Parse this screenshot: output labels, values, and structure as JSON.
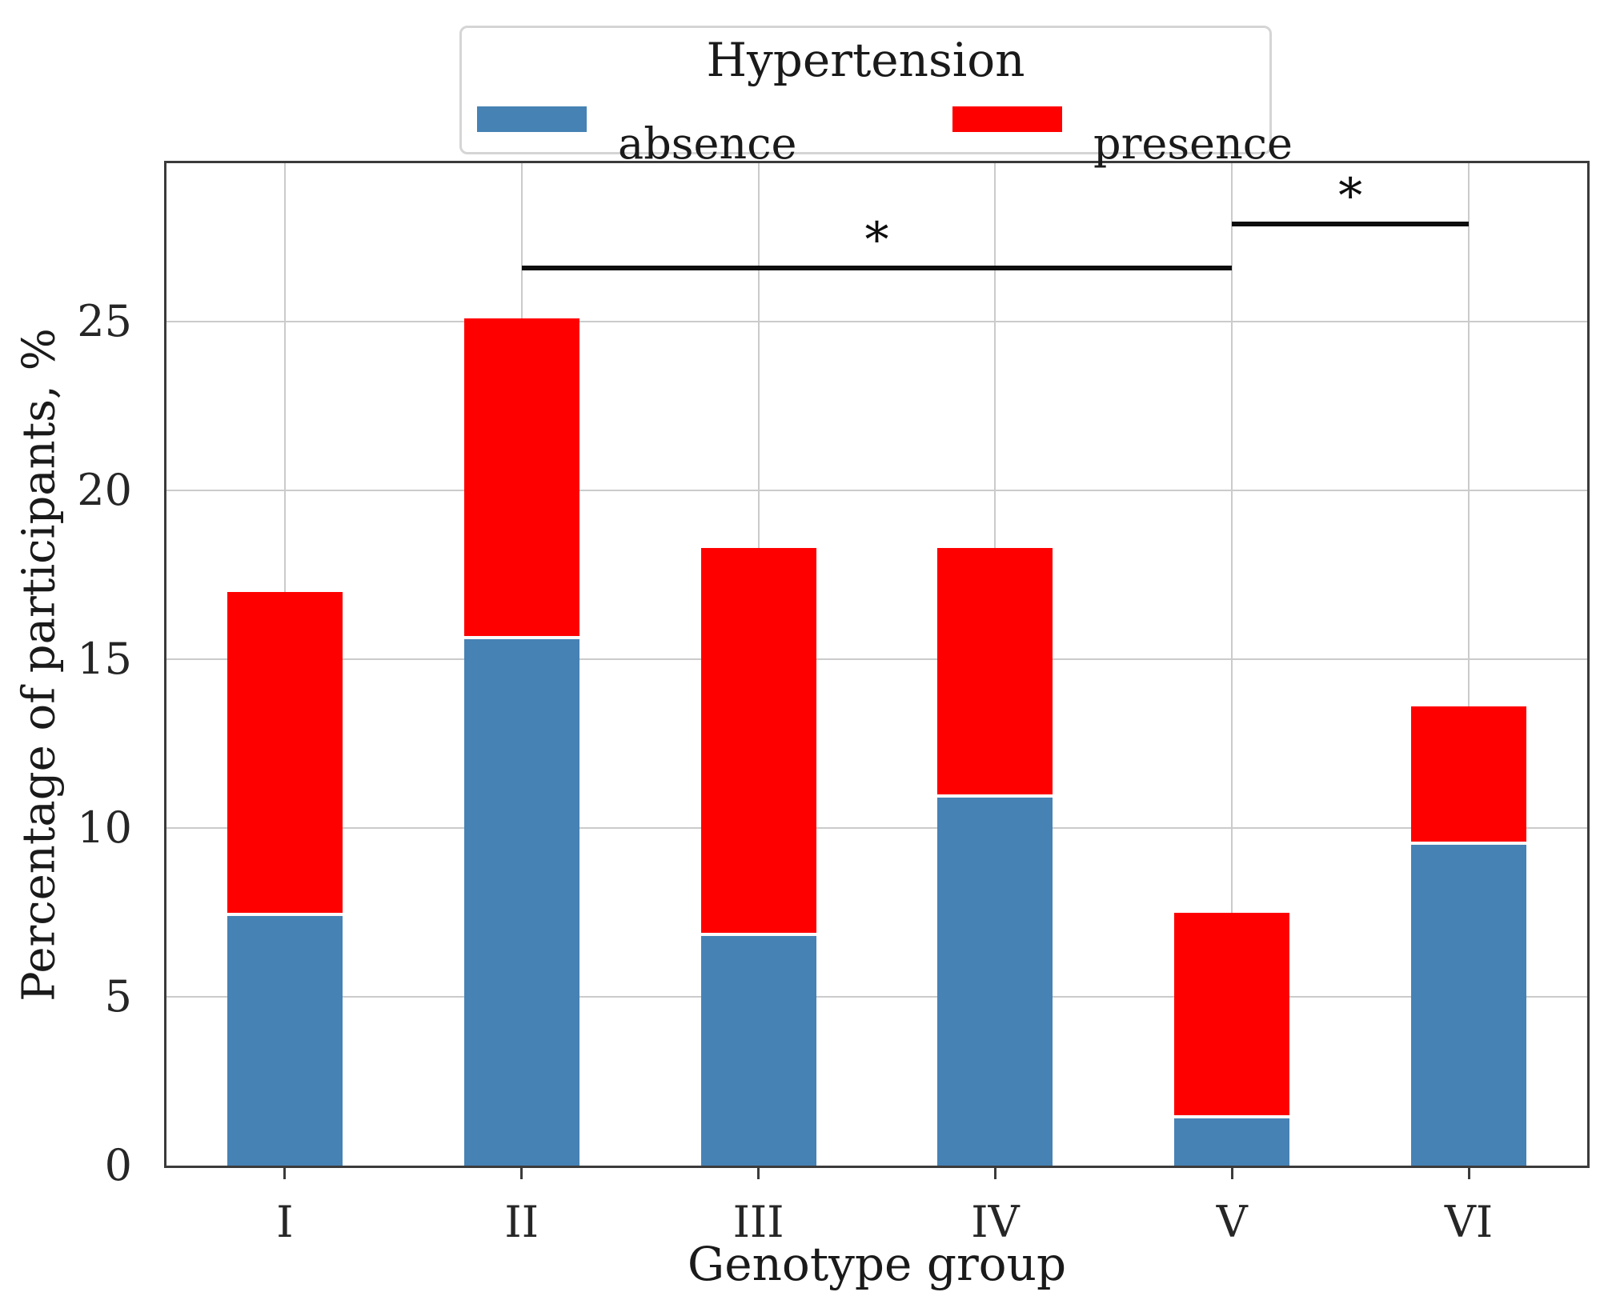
{
  "chart_data": {
    "type": "bar",
    "stacked": true,
    "categories": [
      "I",
      "II",
      "III",
      "IV",
      "V",
      "VI"
    ],
    "series": [
      {
        "name": "absence",
        "color": "#4682B4",
        "values": [
          7.4,
          15.6,
          6.8,
          10.9,
          1.4,
          9.5
        ]
      },
      {
        "name": "presence",
        "color": "#FF0000",
        "values": [
          9.6,
          9.5,
          11.5,
          7.4,
          6.1,
          4.1
        ]
      }
    ],
    "totals": [
      17.0,
      25.1,
      18.3,
      18.3,
      7.5,
      13.6
    ],
    "xlabel": "Genotype group",
    "ylabel": "Percentage of participants, %",
    "ylim": [
      0,
      29.7
    ],
    "yticks": [
      0,
      5,
      10,
      15,
      20,
      25
    ],
    "grid": "both",
    "legend": {
      "title": "Hypertension",
      "position": "top",
      "entries": [
        {
          "label": "absence",
          "color": "#4682B4"
        },
        {
          "label": "presence",
          "color": "#FF0000"
        }
      ]
    },
    "annotations": [
      {
        "type": "significance-line",
        "from_category": "II",
        "to_category": "V",
        "y_value": 26.6,
        "label": "*"
      },
      {
        "type": "significance-line",
        "from_category": "V",
        "to_category": "VI",
        "y_value": 27.9,
        "label": "*"
      }
    ],
    "colors": {
      "absence": "#4682B4",
      "presence": "#FF0000",
      "gridline": "#cbcbcb",
      "spine": "#3b3b3b",
      "text": "#1a1a1a"
    }
  }
}
